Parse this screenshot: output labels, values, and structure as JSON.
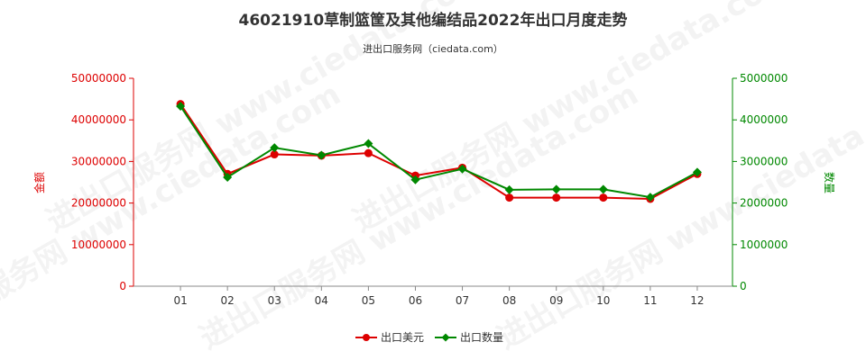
{
  "chart_data": {
    "type": "line",
    "title": "46021910草制篮筐及其他编结品2022年出口月度走势",
    "subtitle": "进出口服务网（ciedata.com）",
    "categories": [
      "01",
      "02",
      "03",
      "04",
      "05",
      "06",
      "07",
      "08",
      "09",
      "10",
      "11",
      "12"
    ],
    "y_left": {
      "label": "金额",
      "ylim": [
        0,
        50000000
      ],
      "ticks": [
        "0",
        "10000000",
        "20000000",
        "30000000",
        "40000000",
        "50000000"
      ],
      "color": "#dd0000"
    },
    "y_right": {
      "label": "数量",
      "ylim": [
        0,
        5000000
      ],
      "ticks": [
        "0",
        "1000000",
        "2000000",
        "3000000",
        "4000000",
        "5000000"
      ],
      "color": "#008800"
    },
    "series": [
      {
        "name": "出口美元",
        "axis": "left",
        "color": "#dd0000",
        "values": [
          43800000,
          27000000,
          31700000,
          31400000,
          32000000,
          26600000,
          28500000,
          21300000,
          21300000,
          21300000,
          21000000,
          27000000
        ]
      },
      {
        "name": "出口数量",
        "axis": "right",
        "color": "#008800",
        "values": [
          4330000,
          2620000,
          3330000,
          3150000,
          3430000,
          2560000,
          2820000,
          2320000,
          2330000,
          2330000,
          2140000,
          2740000
        ]
      }
    ],
    "grid": false,
    "legend_position": "bottom-center",
    "watermark": "进出口服务网 www.ciedata.com"
  }
}
